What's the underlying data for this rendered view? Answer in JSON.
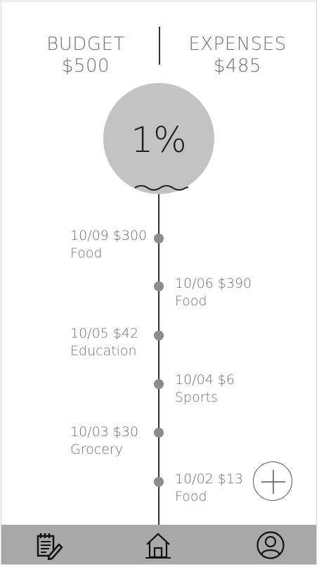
{
  "header": {
    "budget_label": "BUDGET",
    "budget_value": "$500",
    "expenses_label": "EXPENSES",
    "expenses_value": "$485"
  },
  "progress": {
    "percent_text": "1%",
    "fill_fraction": 0.01
  },
  "transactions": [
    {
      "date_amount": "10/09 $300",
      "category": "Food",
      "side": "left"
    },
    {
      "date_amount": "10/06 $390",
      "category": "Food",
      "side": "right"
    },
    {
      "date_amount": "10/05 $42",
      "category": "Education",
      "side": "left"
    },
    {
      "date_amount": "10/04 $6",
      "category": "Sports",
      "side": "right"
    },
    {
      "date_amount": "10/03 $30",
      "category": "Grocery",
      "side": "left"
    },
    {
      "date_amount": "10/02 $13",
      "category": "Food",
      "side": "right"
    }
  ],
  "actions": {
    "add_icon": "plus-circle-icon"
  },
  "bottom_nav": {
    "items": [
      {
        "icon": "notepad-pencil-icon"
      },
      {
        "icon": "home-icon"
      },
      {
        "icon": "user-profile-icon"
      }
    ]
  },
  "colors": {
    "accent_gray": "#c3c3c3",
    "nav_bar": "#a8a8a8",
    "text": "#707070"
  }
}
